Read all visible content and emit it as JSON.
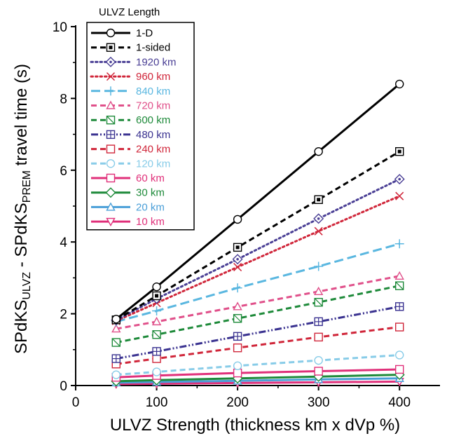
{
  "chart_data": {
    "type": "line",
    "xlabel": "ULVZ Strength  (thickness km x dVp %)",
    "ylabel": {
      "p1": "SPdKS",
      "s1": "ULVZ",
      "p2": " - SPdKS",
      "s2": "PREM",
      "p3": " travel time (s)"
    },
    "xlim": [
      0,
      450
    ],
    "ylim": [
      0,
      10
    ],
    "xticks": [
      0,
      100,
      200,
      300,
      400
    ],
    "yticks": [
      0,
      2,
      4,
      6,
      8,
      10
    ],
    "grid": false,
    "legend_title": "ULVZ Length",
    "legend_position": "top-left",
    "x": [
      50,
      100,
      200,
      300,
      400
    ],
    "series": [
      {
        "name": "1-D",
        "color": "#000000",
        "dash": "solid",
        "marker": "circle",
        "values": [
          1.85,
          2.75,
          4.63,
          6.52,
          8.4
        ]
      },
      {
        "name": "1-sided",
        "color": "#000000",
        "dash": "dash",
        "marker": "square-dot",
        "values": [
          1.83,
          2.5,
          3.85,
          5.18,
          6.52
        ]
      },
      {
        "name": "1920  km",
        "color": "#4a3f95",
        "dash": "dot",
        "marker": "diamond-dot",
        "values": [
          1.82,
          2.42,
          3.52,
          4.65,
          5.75
        ]
      },
      {
        "name": "960  km",
        "color": "#d0263a",
        "dash": "dot",
        "marker": "x",
        "values": [
          1.8,
          2.3,
          3.3,
          4.3,
          5.28
        ]
      },
      {
        "name": "840  km",
        "color": "#5ab7e0",
        "dash": "longdash",
        "marker": "plus",
        "values": [
          1.78,
          2.08,
          2.72,
          3.32,
          3.95
        ]
      },
      {
        "name": "720  km",
        "color": "#e0508a",
        "dash": "dash",
        "marker": "triangle",
        "values": [
          1.58,
          1.78,
          2.2,
          2.62,
          3.05
        ]
      },
      {
        "name": "600  km",
        "color": "#1e8a3a",
        "dash": "dash",
        "marker": "square-slash",
        "values": [
          1.2,
          1.42,
          1.87,
          2.32,
          2.78
        ]
      },
      {
        "name": "480  km",
        "color": "#3a3290",
        "dash": "dashdotdot",
        "marker": "square-cross",
        "values": [
          0.75,
          0.95,
          1.37,
          1.78,
          2.2
        ]
      },
      {
        "name": "240  km",
        "color": "#d0263a",
        "dash": "dash",
        "marker": "square",
        "values": [
          0.6,
          0.75,
          1.05,
          1.35,
          1.63
        ]
      },
      {
        "name": "120  km",
        "color": "#88cce8",
        "dash": "dash",
        "marker": "circle",
        "values": [
          0.3,
          0.38,
          0.55,
          0.7,
          0.85
        ]
      },
      {
        "name": "60  km",
        "color": "#e0307a",
        "dash": "solid",
        "marker": "square",
        "values": [
          0.23,
          0.28,
          0.35,
          0.4,
          0.45
        ]
      },
      {
        "name": "30  km",
        "color": "#1e8a3a",
        "dash": "solid",
        "marker": "diamond",
        "values": [
          0.12,
          0.15,
          0.2,
          0.25,
          0.3
        ]
      },
      {
        "name": "20  km",
        "color": "#4a9fd8",
        "dash": "solid",
        "marker": "triangle",
        "values": [
          0.08,
          0.1,
          0.13,
          0.17,
          0.2
        ]
      },
      {
        "name": "10  km",
        "color": "#e0307a",
        "dash": "solid",
        "marker": "triangle-down",
        "values": [
          0.04,
          0.05,
          0.07,
          0.09,
          0.11
        ]
      }
    ]
  }
}
